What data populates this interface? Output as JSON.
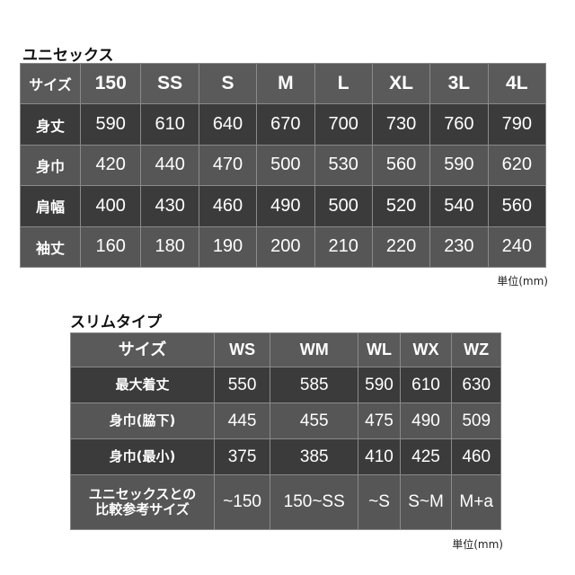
{
  "unisex": {
    "title": "ユニセックス",
    "header": [
      "サイズ",
      "150",
      "SS",
      "S",
      "M",
      "L",
      "XL",
      "3L",
      "4L"
    ],
    "rows": [
      [
        "身丈",
        "590",
        "610",
        "640",
        "670",
        "700",
        "730",
        "760",
        "790"
      ],
      [
        "身巾",
        "420",
        "440",
        "470",
        "500",
        "530",
        "560",
        "590",
        "620"
      ],
      [
        "肩幅",
        "400",
        "430",
        "460",
        "490",
        "500",
        "520",
        "540",
        "560"
      ],
      [
        "袖丈",
        "160",
        "180",
        "190",
        "200",
        "210",
        "220",
        "230",
        "240"
      ]
    ],
    "unit": "単位(mm)"
  },
  "slim": {
    "title": "スリムタイプ",
    "header": [
      "サイズ",
      "WS",
      "WM",
      "WL",
      "WX",
      "WZ"
    ],
    "rows": [
      [
        "最大着丈",
        "550",
        "585",
        "590",
        "610",
        "630"
      ],
      [
        "身巾(脇下)",
        "445",
        "455",
        "475",
        "490",
        "509"
      ],
      [
        "身巾(最小)",
        "375",
        "385",
        "410",
        "425",
        "460"
      ],
      [
        "ユニセックスとの\n比較参考サイズ",
        "~150",
        "150~SS",
        "~S",
        "S~M",
        "M+a"
      ]
    ],
    "unit": "単位(mm)"
  }
}
